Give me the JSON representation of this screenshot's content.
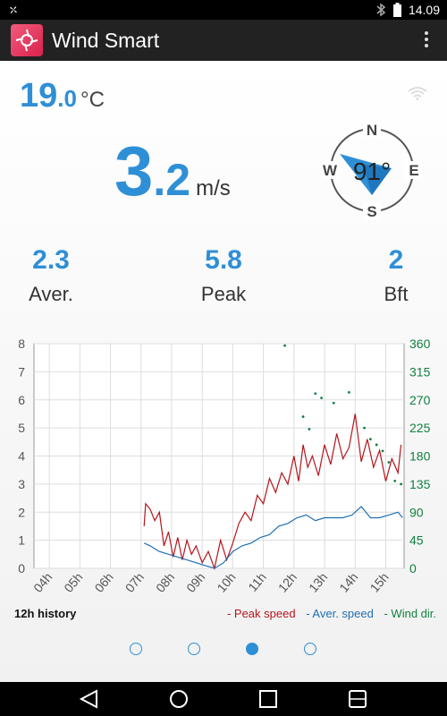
{
  "status": {
    "time": "14.09"
  },
  "app": {
    "title": "Wind Smart"
  },
  "temperature": {
    "int": "19",
    "dec": ".0",
    "unit": "°C"
  },
  "speed": {
    "int": "3",
    "dec": ".2",
    "unit": "m/s"
  },
  "compass": {
    "direction_deg": "91°",
    "north": "N",
    "east": "E",
    "south": "S",
    "west": "W"
  },
  "stats": [
    {
      "value": "2.3",
      "label": "Aver."
    },
    {
      "value": "5.8",
      "label": "Peak"
    },
    {
      "value": "2",
      "label": "Bft"
    }
  ],
  "footer": {
    "history": "12h history",
    "legend": [
      "- Peak speed",
      "- Aver. speed",
      "- Wind dir."
    ]
  },
  "pager": {
    "count": 4,
    "active": 2
  },
  "colors": {
    "accent": "#2f8fd6",
    "peak": "#b5151b",
    "average": "#1f6fb2",
    "wind_dir": "#108040"
  },
  "chart_data": {
    "type": "line",
    "x_ticks": [
      "04h",
      "05h",
      "06h",
      "07h",
      "08h",
      "09h",
      "10h",
      "11h",
      "12h",
      "13h",
      "14h",
      "15h"
    ],
    "y_left": {
      "ticks": [
        "0",
        "1",
        "2",
        "3",
        "4",
        "5",
        "6",
        "7",
        "8"
      ],
      "range": [
        0,
        8
      ]
    },
    "y_right": {
      "ticks": [
        "0",
        "45",
        "90",
        "135",
        "180",
        "225",
        "270",
        "315",
        "360"
      ],
      "range": [
        0,
        360
      ]
    },
    "x_range_hours": [
      3.5,
      15.6
    ],
    "grid": true,
    "series": [
      {
        "name": "Peak speed",
        "type": "line",
        "points": [
          [
            7.1,
            1.5
          ],
          [
            7.15,
            2.3
          ],
          [
            7.3,
            2.1
          ],
          [
            7.45,
            1.7
          ],
          [
            7.6,
            2.0
          ],
          [
            7.75,
            0.8
          ],
          [
            7.9,
            1.3
          ],
          [
            8.05,
            0.4
          ],
          [
            8.2,
            1.1
          ],
          [
            8.35,
            0.3
          ],
          [
            8.5,
            1.0
          ],
          [
            8.65,
            0.5
          ],
          [
            8.8,
            0.8
          ],
          [
            9.0,
            0.2
          ],
          [
            9.2,
            0.6
          ],
          [
            9.4,
            0.0
          ],
          [
            9.6,
            1.0
          ],
          [
            9.8,
            0.3
          ],
          [
            10.0,
            0.9
          ],
          [
            10.2,
            1.6
          ],
          [
            10.4,
            2.0
          ],
          [
            10.6,
            1.7
          ],
          [
            10.8,
            2.6
          ],
          [
            11.0,
            2.3
          ],
          [
            11.2,
            3.2
          ],
          [
            11.4,
            2.7
          ],
          [
            11.6,
            3.4
          ],
          [
            11.8,
            3.0
          ],
          [
            12.0,
            4.0
          ],
          [
            12.15,
            3.1
          ],
          [
            12.3,
            4.4
          ],
          [
            12.45,
            3.6
          ],
          [
            12.6,
            4.0
          ],
          [
            12.8,
            3.3
          ],
          [
            13.0,
            4.4
          ],
          [
            13.2,
            3.7
          ],
          [
            13.4,
            4.8
          ],
          [
            13.6,
            3.9
          ],
          [
            13.8,
            4.3
          ],
          [
            14.0,
            5.5
          ],
          [
            14.2,
            3.8
          ],
          [
            14.4,
            4.6
          ],
          [
            14.6,
            3.6
          ],
          [
            14.8,
            4.2
          ],
          [
            15.0,
            3.1
          ],
          [
            15.2,
            3.9
          ],
          [
            15.4,
            3.4
          ],
          [
            15.5,
            4.4
          ]
        ]
      },
      {
        "name": "Aver. speed",
        "type": "line",
        "points": [
          [
            7.1,
            0.9
          ],
          [
            7.3,
            0.8
          ],
          [
            7.6,
            0.6
          ],
          [
            7.9,
            0.5
          ],
          [
            8.2,
            0.4
          ],
          [
            8.5,
            0.3
          ],
          [
            8.8,
            0.2
          ],
          [
            9.1,
            0.1
          ],
          [
            9.4,
            0.0
          ],
          [
            9.7,
            0.2
          ],
          [
            10.0,
            0.6
          ],
          [
            10.3,
            0.8
          ],
          [
            10.6,
            0.9
          ],
          [
            10.9,
            1.1
          ],
          [
            11.2,
            1.2
          ],
          [
            11.5,
            1.5
          ],
          [
            11.8,
            1.6
          ],
          [
            12.1,
            1.8
          ],
          [
            12.4,
            1.9
          ],
          [
            12.7,
            1.7
          ],
          [
            13.0,
            1.8
          ],
          [
            13.3,
            1.8
          ],
          [
            13.6,
            1.8
          ],
          [
            13.9,
            1.9
          ],
          [
            14.2,
            2.2
          ],
          [
            14.5,
            1.8
          ],
          [
            14.8,
            1.8
          ],
          [
            15.1,
            1.9
          ],
          [
            15.4,
            2.0
          ],
          [
            15.55,
            1.8
          ]
        ]
      },
      {
        "name": "Wind dir.",
        "type": "scatter",
        "points": [
          [
            11.7,
            357
          ],
          [
            12.3,
            243
          ],
          [
            12.5,
            223
          ],
          [
            12.7,
            280
          ],
          [
            12.9,
            273
          ],
          [
            13.3,
            265
          ],
          [
            13.8,
            282
          ],
          [
            14.3,
            225
          ],
          [
            14.5,
            207
          ],
          [
            14.7,
            198
          ],
          [
            14.9,
            188
          ],
          [
            15.1,
            170
          ],
          [
            15.3,
            140
          ],
          [
            15.5,
            135
          ]
        ]
      }
    ]
  }
}
